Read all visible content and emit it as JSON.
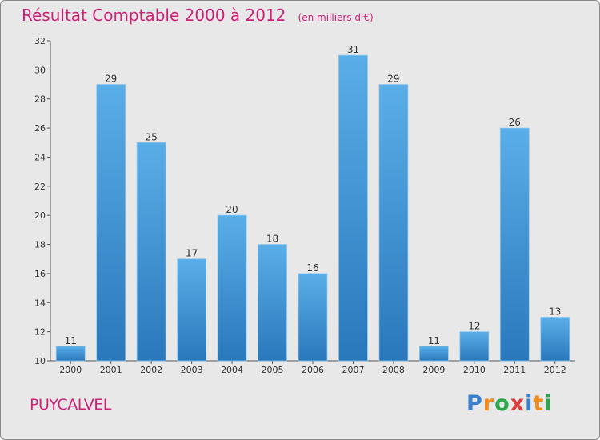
{
  "header": {
    "title": "Résultat Comptable 2000 à 2012",
    "subtitle": "(en milliers d'€)"
  },
  "footer": {
    "place": "PUYCALVEL",
    "brand": "Proxiti"
  },
  "colors": {
    "title": "#cc2277",
    "bar_light": "#5aaee8",
    "bar_dark": "#2a78bc",
    "background": "#e8e8e8"
  },
  "chart_data": {
    "type": "bar",
    "title": "Résultat Comptable 2000 à 2012",
    "subtitle": "(en milliers d'€)",
    "xlabel": "",
    "ylabel": "",
    "categories": [
      "2000",
      "2001",
      "2002",
      "2003",
      "2004",
      "2005",
      "2006",
      "2007",
      "2008",
      "2009",
      "2010",
      "2011",
      "2012"
    ],
    "values": [
      11,
      29,
      25,
      17,
      20,
      18,
      16,
      31,
      29,
      11,
      12,
      26,
      13
    ],
    "ylim": [
      10,
      32
    ],
    "yticks": [
      10,
      12,
      14,
      16,
      18,
      20,
      22,
      24,
      26,
      28,
      30,
      32
    ],
    "grid": false,
    "legend": "none"
  }
}
